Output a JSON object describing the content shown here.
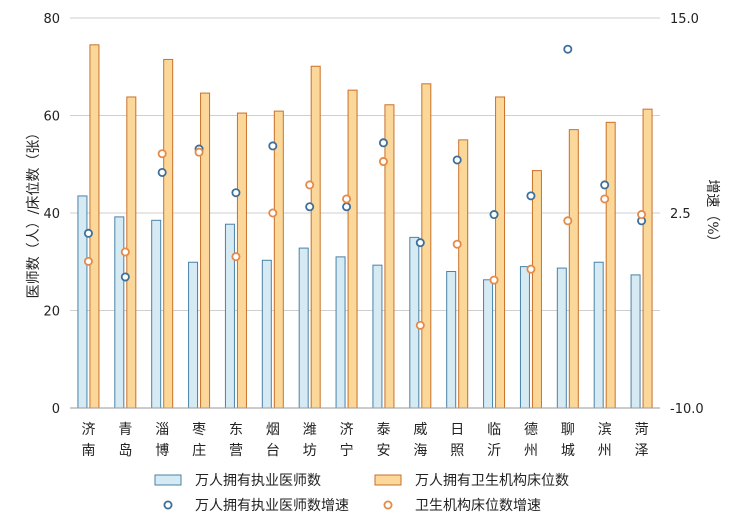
{
  "chart_data": {
    "type": "bar",
    "categories": [
      [
        "济",
        "南"
      ],
      [
        "青",
        "岛"
      ],
      [
        "淄",
        "博"
      ],
      [
        "枣",
        "庄"
      ],
      [
        "东",
        "营"
      ],
      [
        "烟",
        "台"
      ],
      [
        "潍",
        "坊"
      ],
      [
        "济",
        "宁"
      ],
      [
        "泰",
        "安"
      ],
      [
        "威",
        "海"
      ],
      [
        "日",
        "照"
      ],
      [
        "临",
        "沂"
      ],
      [
        "德",
        "州"
      ],
      [
        "聊",
        "城"
      ],
      [
        "滨",
        "州"
      ],
      [
        "菏",
        "泽"
      ]
    ],
    "ylabel": "医师数（人）/床位数（张）",
    "y2label": "增速（%）",
    "ylim": [
      0,
      80
    ],
    "yticks": [
      "0",
      "20",
      "40",
      "60",
      "80"
    ],
    "y2lim": [
      -10,
      15
    ],
    "y2ticks": [
      "-10.0",
      "2.5",
      "15.0"
    ],
    "grid": true,
    "legend_position": "bottom",
    "series": [
      {
        "name": "万人拥有执业医师数",
        "kind": "bar",
        "axis": "left",
        "color": "#d6eaf4",
        "stroke": "#4a82a8",
        "values": [
          43.5,
          39.2,
          38.5,
          29.9,
          37.7,
          30.3,
          32.8,
          31.0,
          29.3,
          35.0,
          28.0,
          26.3,
          29.0,
          28.7,
          29.9,
          27.3
        ]
      },
      {
        "name": "万人拥有卫生机构床位数",
        "kind": "bar",
        "axis": "left",
        "color": "#fbd89a",
        "stroke": "#c9712a",
        "values": [
          74.5,
          63.8,
          71.5,
          64.6,
          60.5,
          60.9,
          70.1,
          65.2,
          62.2,
          66.5,
          55.0,
          63.8,
          48.7,
          57.1,
          58.6,
          61.3
        ]
      },
      {
        "name": "万人拥有执业医师数增速",
        "kind": "scatter",
        "axis": "right",
        "color": "#3d6f9a",
        "values": [
          1.2,
          -1.6,
          5.1,
          6.6,
          3.8,
          6.8,
          2.9,
          2.9,
          7.0,
          0.6,
          5.9,
          2.4,
          3.6,
          13.0,
          4.3,
          2.0
        ]
      },
      {
        "name": "卫生机构床位数增速",
        "kind": "scatter",
        "axis": "right",
        "color": "#e58a47",
        "values": [
          -0.6,
          0.0,
          6.3,
          6.4,
          -0.3,
          2.5,
          4.3,
          3.4,
          5.8,
          -4.7,
          0.5,
          -1.8,
          -1.1,
          2.0,
          3.4,
          2.4
        ]
      }
    ]
  }
}
